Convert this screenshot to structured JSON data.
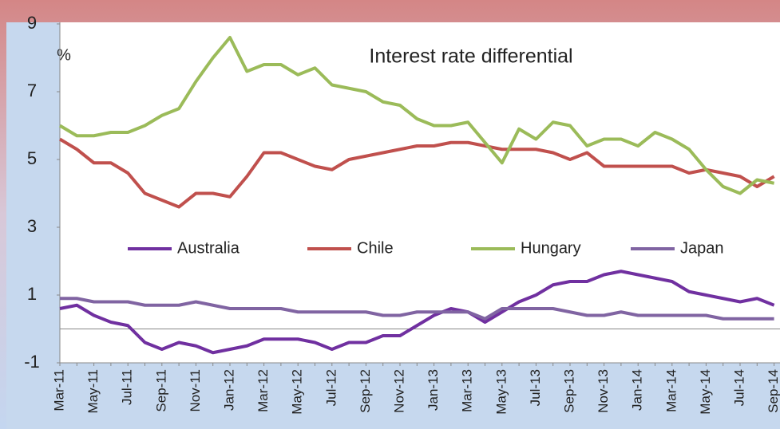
{
  "chart_data": {
    "type": "line",
    "title": "Interest rate differential",
    "y_label": "%",
    "categories": [
      "Mar-11",
      null,
      "May-11",
      null,
      "Jul-11",
      null,
      "Sep-11",
      null,
      "Nov-11",
      null,
      "Jan-12",
      null,
      "Mar-12",
      null,
      "May-12",
      null,
      "Jul-12",
      null,
      "Sep-12",
      null,
      "Nov-12",
      null,
      "Jan-13",
      null,
      "Mar-13",
      null,
      "May-13",
      null,
      "Jul-13",
      null,
      "Sep-13",
      null,
      "Nov-13",
      null,
      "Jan-14",
      null,
      "Mar-14",
      null,
      "May-14",
      null,
      "Jul-14",
      null,
      "Sep-14"
    ],
    "series": [
      {
        "name": "Australia",
        "color": "#7030a0",
        "values": [
          0.6,
          0.7,
          0.4,
          0.2,
          0.1,
          -0.4,
          -0.6,
          -0.4,
          -0.5,
          -0.7,
          -0.6,
          -0.5,
          -0.3,
          -0.3,
          -0.3,
          -0.4,
          -0.6,
          -0.4,
          -0.4,
          -0.2,
          -0.2,
          0.1,
          0.4,
          0.6,
          0.5,
          0.2,
          0.5,
          0.8,
          1.0,
          1.3,
          1.4,
          1.4,
          1.6,
          1.7,
          1.6,
          1.5,
          1.4,
          1.1,
          1.0,
          0.9,
          0.8,
          0.9,
          0.7
        ]
      },
      {
        "name": "Chile",
        "color": "#c0504d",
        "values": [
          5.6,
          5.3,
          4.9,
          4.9,
          4.6,
          4.0,
          3.8,
          3.6,
          4.0,
          4.0,
          3.9,
          4.5,
          5.2,
          5.2,
          5.0,
          4.8,
          4.7,
          5.0,
          5.1,
          5.2,
          5.3,
          5.4,
          5.4,
          5.5,
          5.5,
          5.4,
          5.3,
          5.3,
          5.3,
          5.2,
          5.0,
          5.2,
          4.8,
          4.8,
          4.8,
          4.8,
          4.8,
          4.6,
          4.7,
          4.6,
          4.5,
          4.2,
          4.5
        ]
      },
      {
        "name": "Hungary",
        "color": "#9bbb59",
        "values": [
          6.0,
          5.7,
          5.7,
          5.8,
          5.8,
          6.0,
          6.3,
          6.5,
          7.3,
          8.0,
          8.6,
          7.6,
          7.8,
          7.8,
          7.5,
          7.7,
          7.2,
          7.1,
          7.0,
          6.7,
          6.6,
          6.2,
          6.0,
          6.0,
          6.1,
          5.5,
          4.9,
          5.9,
          5.6,
          6.1,
          6.0,
          5.4,
          5.6,
          5.6,
          5.4,
          5.8,
          5.6,
          5.3,
          4.7,
          4.2,
          4.0,
          4.4,
          4.3
        ]
      },
      {
        "name": "Japan",
        "color": "#8064a2",
        "values": [
          0.9,
          0.9,
          0.8,
          0.8,
          0.8,
          0.7,
          0.7,
          0.7,
          0.8,
          0.7,
          0.6,
          0.6,
          0.6,
          0.6,
          0.5,
          0.5,
          0.5,
          0.5,
          0.5,
          0.4,
          0.4,
          0.5,
          0.5,
          0.5,
          0.5,
          0.3,
          0.6,
          0.6,
          0.6,
          0.6,
          0.5,
          0.4,
          0.4,
          0.5,
          0.4,
          0.4,
          0.4,
          0.4,
          0.4,
          0.3,
          0.3,
          0.3,
          0.3
        ]
      }
    ],
    "ylim": [
      -1,
      9
    ],
    "yticks": [
      -1,
      1,
      3,
      5,
      7,
      9
    ]
  }
}
